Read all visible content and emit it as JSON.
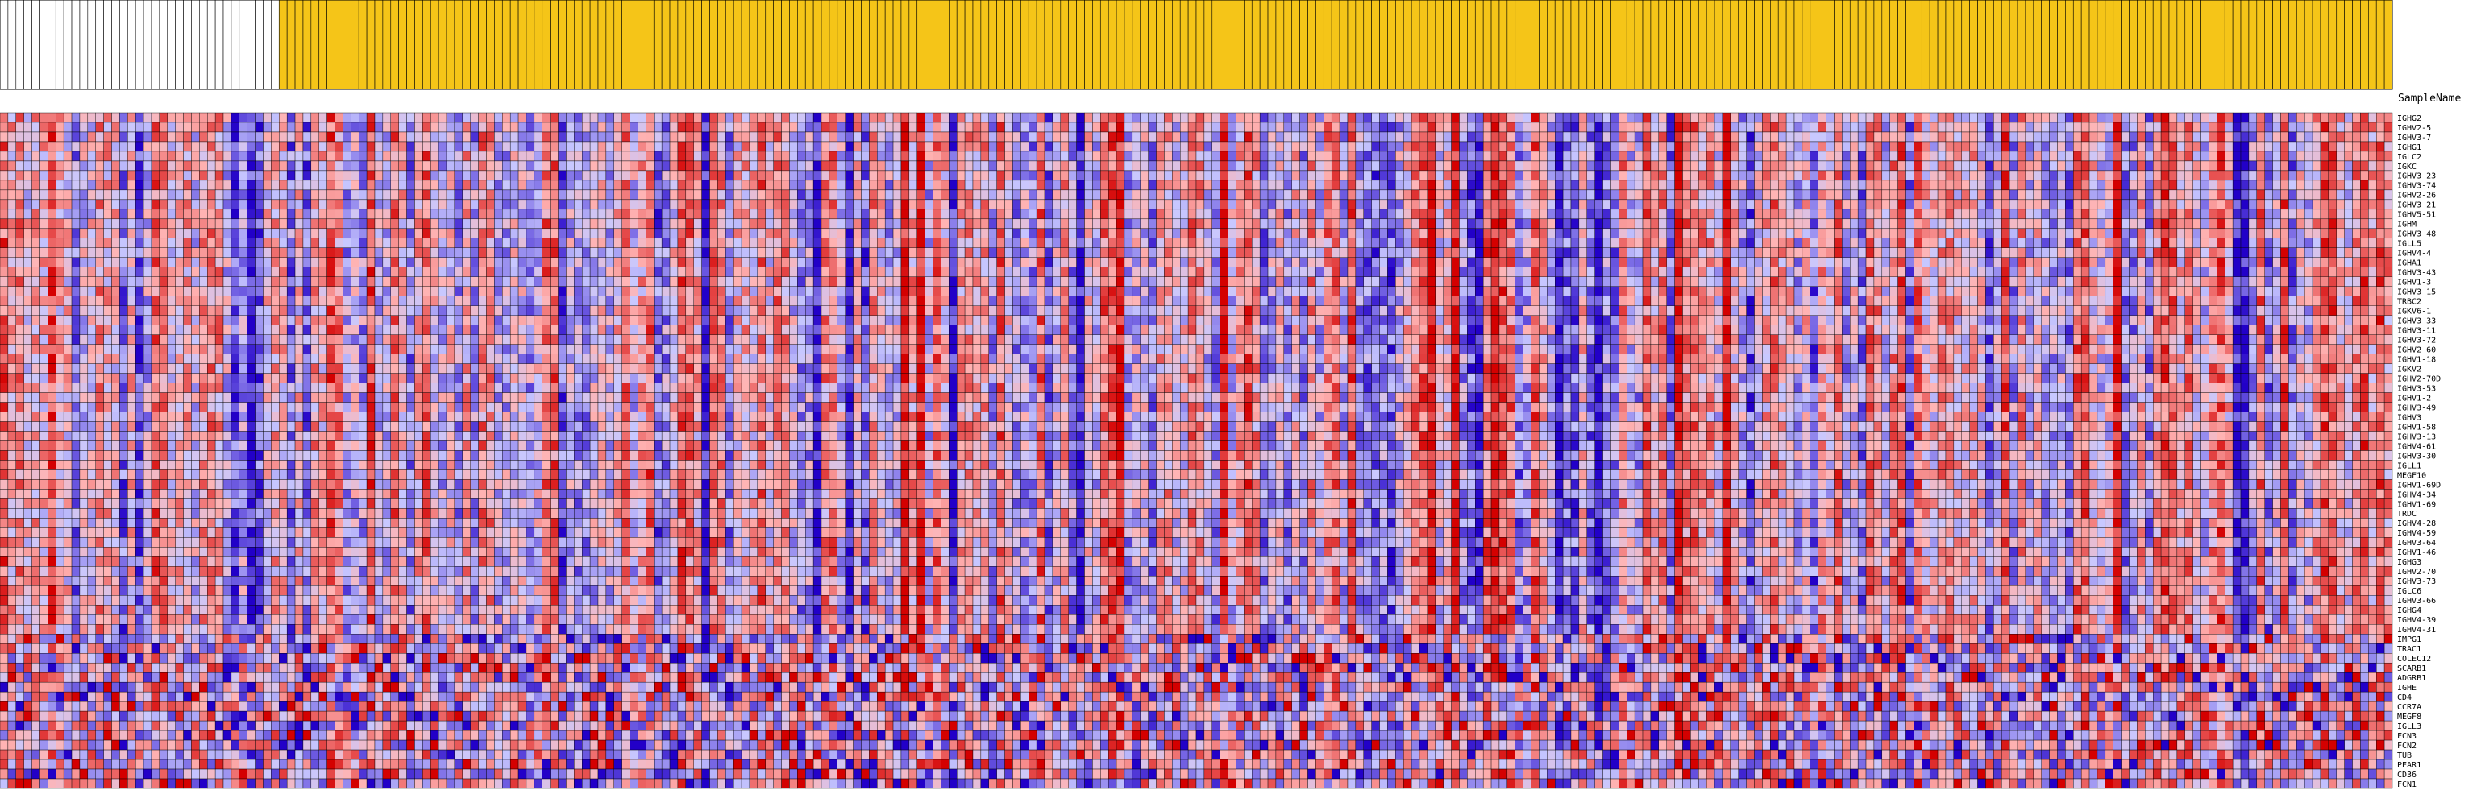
{
  "chart_data": {
    "type": "heatmap",
    "column_header_title": "SampleName",
    "color_scale": {
      "low": "#2200c8",
      "mid_low": "#c8c8ff",
      "mid_high": "#ffb4b4",
      "high": "#d40000",
      "min": -1,
      "max": 1
    },
    "group_colors": {
      "group_a": "#ffffff",
      "group_b": "#f5c518"
    },
    "columns": {
      "group_a_count": 35,
      "group_b_count": 265
    },
    "gene_rows": [
      "IGHG2",
      "IGHV2-5",
      "IGHV3-7",
      "IGHG1",
      "IGLC2",
      "IGKC",
      "IGHV3-23",
      "IGHV3-74",
      "IGHV2-26",
      "IGHV3-21",
      "IGHV5-51",
      "IGHM",
      "IGHV3-48",
      "IGLL5",
      "IGHV4-4",
      "IGHA1",
      "IGHV3-43",
      "IGHV1-3",
      "IGHV3-15",
      "TRBC2",
      "IGKV6-1",
      "IGHV3-33",
      "IGHV3-11",
      "IGHV3-72",
      "IGHV2-60",
      "IGHV1-18",
      "IGKV2",
      "IGHV2-70D",
      "IGHV3-53",
      "IGHV1-2",
      "IGHV3-49",
      "IGHV3",
      "IGHV1-58",
      "IGHV3-13",
      "IGHV4-61",
      "IGHV3-30",
      "IGLL1",
      "MEGF10",
      "IGHV1-69D",
      "IGHV4-34",
      "IGHV1-69",
      "TRDC",
      "IGHV4-28",
      "IGHV4-59",
      "IGHV3-64",
      "IGHV1-46",
      "IGHG3",
      "IGHV2-70",
      "IGHV3-73",
      "IGLC6",
      "IGHV3-66",
      "IGHG4",
      "IGHV4-39",
      "IGHV4-31",
      "IMPG1",
      "TRAC1",
      "COLEC12",
      "SCARB1",
      "ADGRB1",
      "IGHE",
      "CD4",
      "CCR7A",
      "MEGF8",
      "IGLL3",
      "FCN3",
      "FCN2",
      "TUB",
      "PEAR1",
      "CD36",
      "FCN1"
    ]
  }
}
